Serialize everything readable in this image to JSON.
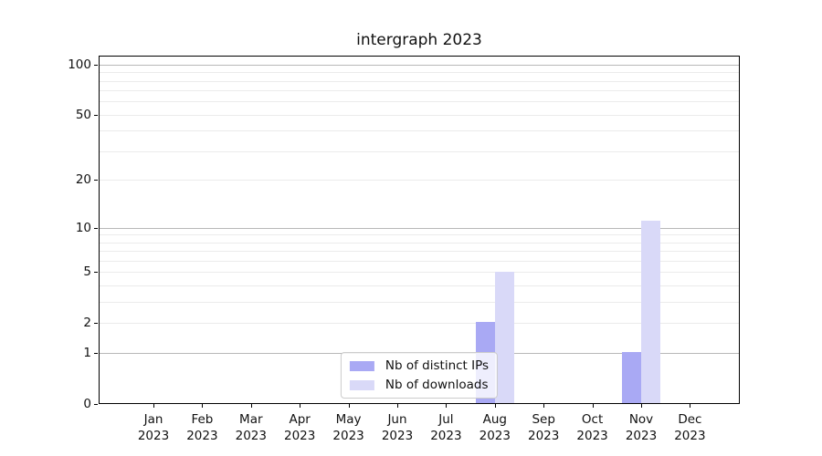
{
  "figure": {
    "background": "#ffffff"
  },
  "chart_data": {
    "type": "bar",
    "title": "intergraph 2023",
    "categories": [
      "Jan",
      "Feb",
      "Mar",
      "Apr",
      "May",
      "Jun",
      "Jul",
      "Aug",
      "Sep",
      "Oct",
      "Nov",
      "Dec"
    ],
    "category_year": "2023",
    "series": [
      {
        "name": "Nb of distinct IPs",
        "color": "#a9a9f4",
        "values": [
          0,
          0,
          0,
          0,
          0,
          0,
          0,
          2,
          0,
          0,
          1,
          0
        ]
      },
      {
        "name": "Nb of downloads",
        "color": "#d9d9f8",
        "values": [
          0,
          0,
          0,
          0,
          0,
          0,
          0,
          5,
          0,
          0,
          11,
          0
        ]
      }
    ],
    "xlabel": "",
    "ylabel": "",
    "yscale": "log1p",
    "ylim": [
      0,
      112
    ],
    "yticks": [
      0,
      1,
      2,
      5,
      10,
      20,
      50,
      100
    ],
    "gridlines": {
      "major": [
        1,
        10,
        100
      ],
      "minor": [
        2,
        3,
        4,
        5,
        6,
        7,
        8,
        9,
        20,
        30,
        40,
        50,
        60,
        70,
        80,
        90
      ],
      "major_color": "#b8b8b8",
      "minor_color": "#ebebeb"
    },
    "legend": {
      "position": "lower center"
    }
  }
}
